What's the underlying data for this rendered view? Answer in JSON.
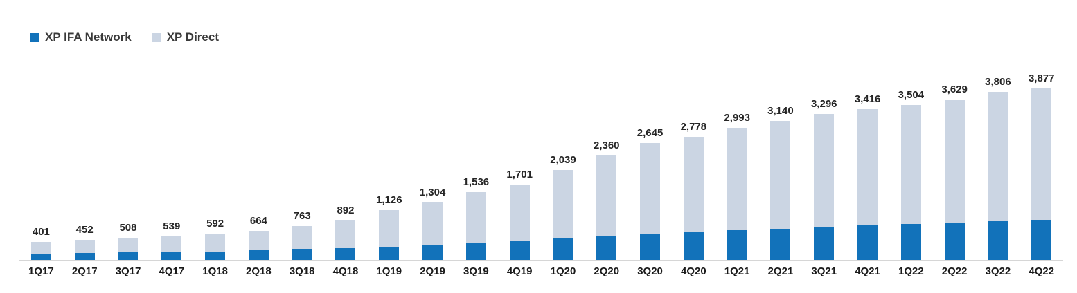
{
  "chart_data": {
    "type": "bar",
    "stacked": true,
    "title": "",
    "xlabel": "",
    "ylabel": "",
    "legend_position": "top-left",
    "grid": false,
    "categories": [
      "1Q17",
      "2Q17",
      "3Q17",
      "4Q17",
      "1Q18",
      "2Q18",
      "3Q18",
      "4Q18",
      "1Q19",
      "2Q19",
      "3Q19",
      "4Q19",
      "1Q20",
      "2Q20",
      "3Q20",
      "4Q20",
      "1Q21",
      "2Q21",
      "3Q21",
      "4Q21",
      "1Q22",
      "2Q22",
      "3Q22",
      "4Q22"
    ],
    "totals": [
      401,
      452,
      508,
      539,
      592,
      664,
      763,
      892,
      1126,
      1304,
      1536,
      1701,
      2039,
      2360,
      2645,
      2778,
      2993,
      3140,
      3296,
      3416,
      3504,
      3629,
      3806,
      3877
    ],
    "total_labels": [
      "401",
      "452",
      "508",
      "539",
      "592",
      "664",
      "763",
      "892",
      "1,126",
      "1,304",
      "1,536",
      "1,701",
      "2,039",
      "2,360",
      "2,645",
      "2,778",
      "2,993",
      "3,140",
      "3,296",
      "3,416",
      "3,504",
      "3,629",
      "3,806",
      "3,877"
    ],
    "series": [
      {
        "name": "XP IFA Network",
        "color": "#1272BA",
        "values": [
          140,
          155,
          170,
          180,
          195,
          215,
          235,
          265,
          305,
          340,
          390,
          430,
          490,
          545,
          595,
          625,
          670,
          705,
          745,
          780,
          815,
          845,
          875,
          895
        ],
        "note": "segment values estimated from bar heights; only totals are labeled in the chart"
      },
      {
        "name": "XP Direct",
        "color": "#CBD5E3",
        "values": [
          261,
          297,
          338,
          359,
          397,
          449,
          528,
          627,
          821,
          964,
          1146,
          1271,
          1549,
          1815,
          2050,
          2153,
          2323,
          2435,
          2551,
          2636,
          2689,
          2784,
          2931,
          2982
        ],
        "note": "segment values estimated from bar heights; only totals are labeled in the chart"
      }
    ],
    "ylim": [
      0,
      4000
    ],
    "axis_line_color": "#d6d6d6"
  }
}
